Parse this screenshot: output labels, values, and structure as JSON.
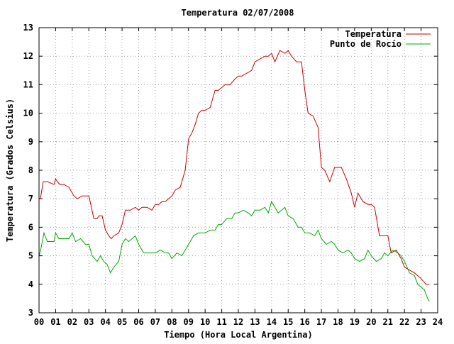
{
  "chart_data": {
    "type": "line",
    "title": "Temperatura 02/07/2008",
    "xlabel": "Tiempo (Hora Local Argentina)",
    "ylabel": "Temperatura (Grados Celsius)",
    "xlim": [
      0,
      24
    ],
    "ylim": [
      3,
      13
    ],
    "x_tick_labels": [
      "00",
      "01",
      "02",
      "03",
      "04",
      "05",
      "06",
      "07",
      "08",
      "09",
      "10",
      "11",
      "12",
      "13",
      "14",
      "15",
      "16",
      "17",
      "18",
      "19",
      "20",
      "21",
      "22",
      "23",
      "24"
    ],
    "y_tick_labels": [
      "3",
      "4",
      "5",
      "6",
      "7",
      "8",
      "9",
      "10",
      "11",
      "12",
      "13"
    ],
    "grid": true,
    "legend_position": "top-right",
    "series": [
      {
        "name": "Temperatura",
        "color": "#cc0000",
        "x": [
          0.0,
          0.08,
          0.25,
          0.5,
          0.9,
          1.0,
          1.1,
          1.25,
          1.5,
          1.8,
          2.1,
          2.3,
          2.6,
          3.0,
          3.3,
          3.5,
          3.6,
          3.8,
          4.0,
          4.1,
          4.2,
          4.35,
          4.5,
          4.8,
          5.0,
          5.2,
          5.5,
          5.8,
          6.0,
          6.2,
          6.5,
          6.8,
          7.0,
          7.2,
          7.4,
          7.6,
          7.8,
          8.0,
          8.2,
          8.5,
          8.8,
          9.0,
          9.2,
          9.4,
          9.6,
          9.8,
          10.0,
          10.3,
          10.6,
          10.8,
          11.0,
          11.2,
          11.5,
          11.8,
          12.0,
          12.2,
          12.5,
          12.8,
          13.0,
          13.3,
          13.6,
          13.8,
          14.0,
          14.2,
          14.5,
          14.8,
          15.0,
          15.2,
          15.5,
          15.8,
          16.0,
          16.2,
          16.5,
          16.8,
          17.0,
          17.2,
          17.5,
          17.8,
          18.0,
          18.2,
          18.5,
          18.8,
          19.0,
          19.2,
          19.5,
          19.8,
          20.0,
          20.2,
          20.5,
          20.8,
          21.0,
          21.2,
          21.5,
          21.8,
          22.0,
          22.3,
          22.6,
          22.8,
          23.0,
          23.15,
          23.3,
          23.5
        ],
        "values": [
          7.0,
          7.0,
          7.6,
          7.6,
          7.5,
          7.7,
          7.6,
          7.5,
          7.5,
          7.4,
          7.1,
          7.0,
          7.1,
          7.1,
          6.3,
          6.3,
          6.4,
          6.4,
          5.9,
          5.8,
          5.7,
          5.6,
          5.7,
          5.8,
          6.1,
          6.6,
          6.6,
          6.7,
          6.6,
          6.7,
          6.7,
          6.6,
          6.8,
          6.8,
          6.9,
          6.9,
          7.0,
          7.1,
          7.3,
          7.4,
          8.0,
          9.1,
          9.3,
          9.6,
          10.0,
          10.1,
          10.1,
          10.2,
          10.8,
          10.8,
          10.9,
          11.0,
          11.0,
          11.2,
          11.3,
          11.3,
          11.4,
          11.5,
          11.8,
          11.9,
          12.0,
          12.0,
          12.1,
          11.8,
          12.2,
          12.1,
          12.2,
          12.0,
          11.8,
          11.8,
          10.8,
          10.0,
          9.9,
          9.5,
          8.1,
          8.0,
          7.6,
          8.1,
          8.1,
          8.1,
          7.7,
          7.2,
          6.7,
          7.2,
          6.9,
          6.8,
          6.8,
          6.7,
          5.7,
          5.7,
          5.7,
          5.1,
          5.2,
          4.9,
          4.6,
          4.5,
          4.4,
          4.3,
          4.2,
          4.1,
          4.0,
          4.0
        ]
      },
      {
        "name": "Punto de Rocío",
        "color": "#00aa00",
        "x": [
          0.0,
          0.1,
          0.3,
          0.5,
          0.9,
          1.0,
          1.2,
          1.5,
          1.8,
          2.0,
          2.2,
          2.5,
          2.8,
          3.0,
          3.2,
          3.5,
          3.7,
          3.9,
          4.1,
          4.3,
          4.5,
          4.8,
          5.0,
          5.2,
          5.4,
          5.6,
          5.8,
          6.0,
          6.3,
          6.6,
          7.0,
          7.3,
          7.6,
          7.8,
          8.0,
          8.3,
          8.6,
          8.8,
          9.0,
          9.3,
          9.6,
          9.8,
          10.0,
          10.3,
          10.6,
          10.8,
          11.0,
          11.3,
          11.6,
          11.8,
          12.0,
          12.3,
          12.6,
          12.8,
          13.0,
          13.3,
          13.6,
          13.8,
          14.0,
          14.2,
          14.4,
          14.6,
          14.8,
          15.0,
          15.3,
          15.6,
          15.8,
          16.0,
          16.3,
          16.6,
          16.8,
          17.0,
          17.3,
          17.6,
          17.8,
          18.0,
          18.3,
          18.6,
          18.8,
          19.0,
          19.3,
          19.6,
          19.8,
          20.0,
          20.3,
          20.6,
          20.8,
          21.0,
          21.3,
          21.6,
          21.8,
          22.0,
          22.3,
          22.6,
          22.8,
          23.0,
          23.2,
          23.4,
          23.5
        ],
        "values": [
          5.0,
          5.2,
          5.8,
          5.5,
          5.5,
          5.8,
          5.6,
          5.6,
          5.6,
          5.8,
          5.5,
          5.6,
          5.4,
          5.4,
          5.0,
          4.8,
          5.0,
          4.8,
          4.7,
          4.4,
          4.6,
          4.8,
          5.4,
          5.6,
          5.5,
          5.6,
          5.7,
          5.4,
          5.1,
          5.1,
          5.1,
          5.2,
          5.1,
          5.1,
          4.9,
          5.1,
          5.0,
          5.2,
          5.4,
          5.7,
          5.8,
          5.8,
          5.8,
          5.9,
          5.9,
          6.1,
          6.1,
          6.3,
          6.3,
          6.5,
          6.5,
          6.6,
          6.5,
          6.4,
          6.6,
          6.6,
          6.7,
          6.5,
          6.9,
          6.7,
          6.5,
          6.6,
          6.7,
          6.4,
          6.3,
          6.0,
          6.0,
          5.8,
          5.8,
          5.7,
          5.9,
          5.6,
          5.4,
          5.5,
          5.4,
          5.2,
          5.1,
          5.2,
          5.1,
          4.9,
          4.8,
          4.9,
          5.2,
          5.0,
          4.8,
          4.9,
          5.1,
          5.0,
          5.2,
          5.1,
          5.0,
          4.8,
          4.4,
          4.3,
          4.0,
          3.9,
          3.8,
          3.5,
          3.4
        ]
      }
    ]
  }
}
